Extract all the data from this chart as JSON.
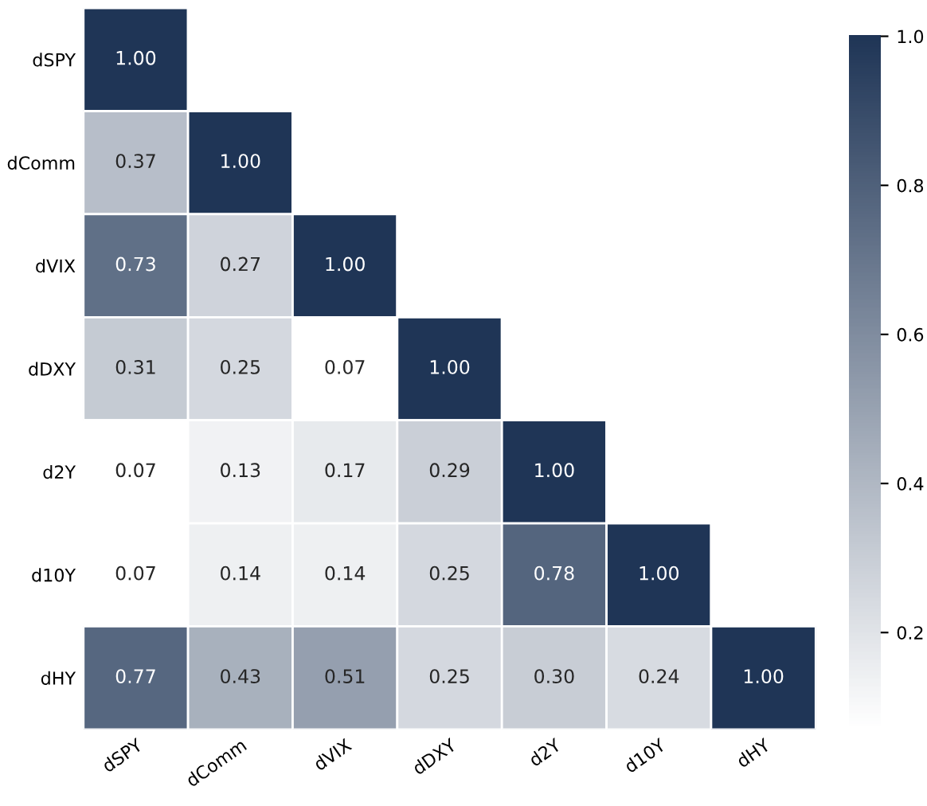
{
  "chart_data": {
    "type": "heatmap",
    "categories": [
      "dSPY",
      "dComm",
      "dVIX",
      "dDXY",
      "d2Y",
      "d10Y",
      "dHY"
    ],
    "y_categories": [
      "dSPY",
      "dComm",
      "dVIX",
      "dDXY",
      "d2Y",
      "d10Y",
      "dHY"
    ],
    "cells": [
      [
        1.0,
        null,
        null,
        null,
        null,
        null,
        null
      ],
      [
        0.37,
        1.0,
        null,
        null,
        null,
        null,
        null
      ],
      [
        0.73,
        0.27,
        1.0,
        null,
        null,
        null,
        null
      ],
      [
        0.31,
        0.25,
        0.07,
        1.0,
        null,
        null,
        null
      ],
      [
        0.07,
        0.13,
        0.17,
        0.29,
        1.0,
        null,
        null
      ],
      [
        0.07,
        0.14,
        0.14,
        0.25,
        0.78,
        1.0,
        null
      ],
      [
        0.77,
        0.43,
        0.51,
        0.25,
        0.3,
        0.24,
        1.0
      ]
    ],
    "cell_labels": [
      [
        "1.00",
        null,
        null,
        null,
        null,
        null,
        null
      ],
      [
        "0.37",
        "1.00",
        null,
        null,
        null,
        null,
        null
      ],
      [
        "0.73",
        "0.27",
        "1.00",
        null,
        null,
        null,
        null
      ],
      [
        "0.31",
        "0.25",
        "0.07",
        "1.00",
        null,
        null,
        null
      ],
      [
        "0.07",
        "0.13",
        "0.17",
        "0.29",
        "1.00",
        null,
        null
      ],
      [
        "0.07",
        "0.14",
        "0.14",
        "0.25",
        "0.78",
        "1.00",
        null
      ],
      [
        "0.77",
        "0.43",
        "0.51",
        "0.25",
        "0.30",
        "0.24",
        "1.00"
      ]
    ],
    "colors": [
      "#ffffff",
      "#1f3556"
    ],
    "clim": [
      0.07,
      1.0
    ],
    "cticks": [
      0.2,
      0.4,
      0.6,
      0.8,
      {
        "value": 1,
        "label": "1.0"
      }
    ]
  }
}
